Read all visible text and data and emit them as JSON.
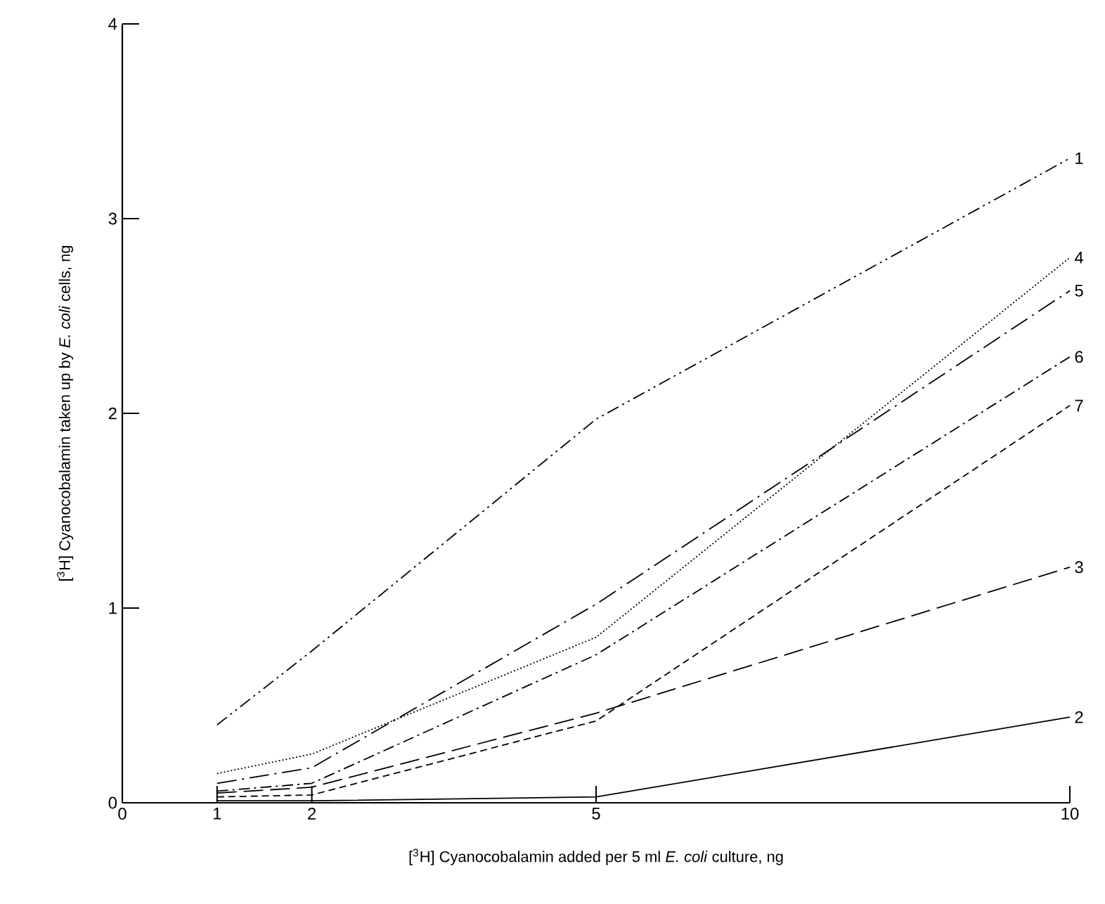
{
  "chart_data": {
    "type": "line",
    "xlabel": "[$^{3}$H]  Cyanocobalamin added per 5 ml *E. coli* culture, ng",
    "ylabel": "[$^{3}$H]  Cyanocobalamin taken up by *E. coli* cells,  ng",
    "x": [
      1,
      2,
      5,
      10
    ],
    "xlim": [
      0,
      10
    ],
    "ylim": [
      0,
      4
    ],
    "xticks": [
      0,
      1,
      2,
      5,
      10
    ],
    "yticks": [
      0,
      1,
      2,
      3,
      4
    ],
    "marker": "none",
    "series": [
      {
        "name": "1",
        "color": "#000000",
        "line_style": "dashdotdotted",
        "values": [
          0.4,
          0.78,
          1.97,
          3.31
        ]
      },
      {
        "name": "2",
        "color": "#000000",
        "line_style": "solid",
        "values": [
          0.01,
          0.01,
          0.03,
          0.44
        ]
      },
      {
        "name": "3",
        "color": "#000000",
        "line_style": "longdashed",
        "values": [
          0.05,
          0.08,
          0.46,
          1.21
        ]
      },
      {
        "name": "4",
        "color": "#000000",
        "line_style": "dotted",
        "values": [
          0.15,
          0.25,
          0.85,
          2.8
        ]
      },
      {
        "name": "5",
        "color": "#000000",
        "line_style": "longdashdotted",
        "values": [
          0.1,
          0.18,
          1.02,
          2.63
        ]
      },
      {
        "name": "6",
        "color": "#000000",
        "line_style": "dashdotted",
        "values": [
          0.06,
          0.1,
          0.76,
          2.29
        ]
      },
      {
        "name": "7",
        "color": "#000000",
        "line_style": "dashed",
        "values": [
          0.03,
          0.04,
          0.42,
          2.04
        ]
      }
    ]
  }
}
